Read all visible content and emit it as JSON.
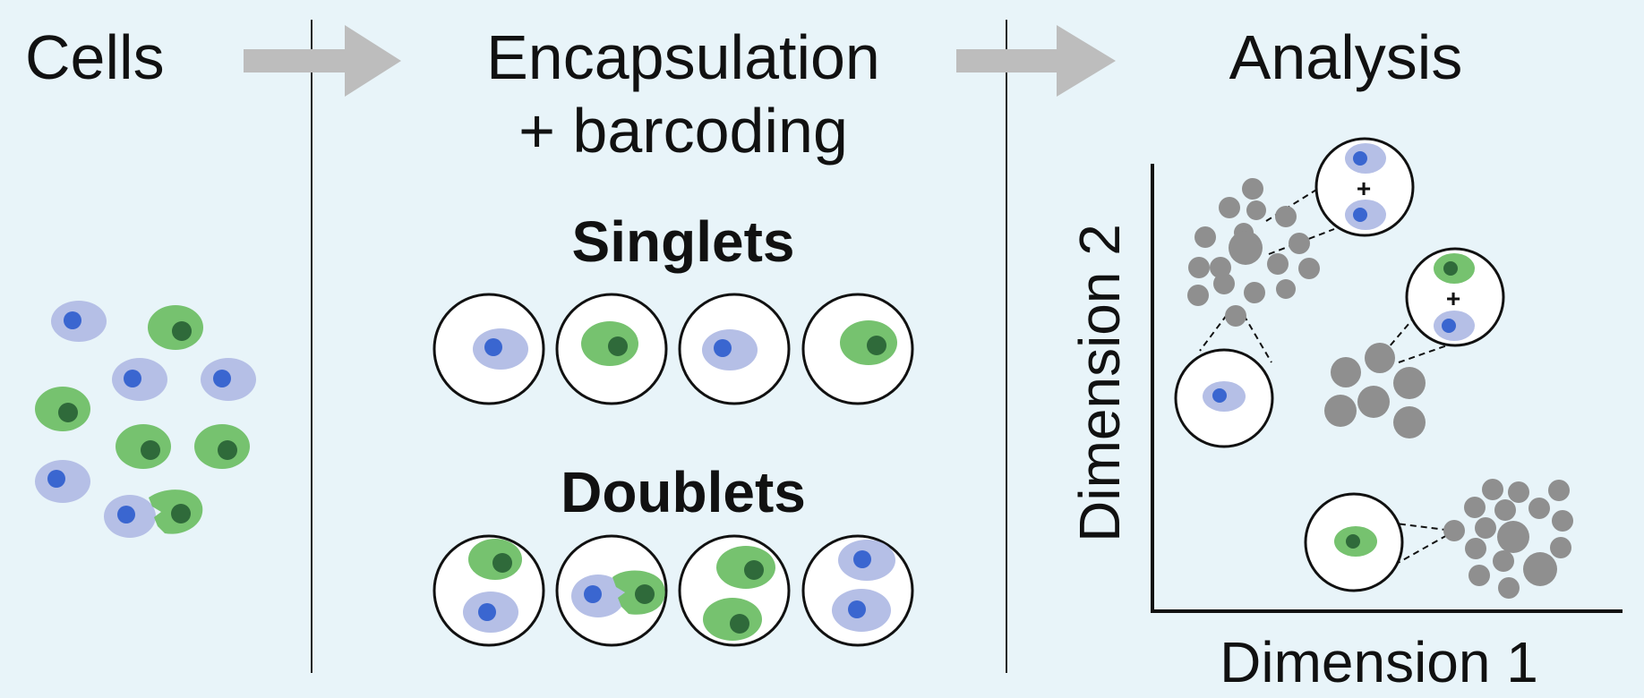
{
  "steps": {
    "cells": "Cells",
    "encapsulation_line1": "Encapsulation",
    "encapsulation_line2": "+ barcoding",
    "analysis": "Analysis"
  },
  "groups": {
    "singlets": "Singlets",
    "doublets": "Doublets"
  },
  "axes": {
    "x": "Dimension 1",
    "y": "Dimension 2"
  },
  "plus_sign": "+",
  "colors": {
    "background": "#e8f4f9",
    "blue_cell": "#b5bfe6",
    "blue_nucleus": "#3a66d0",
    "green_cell": "#76c26f",
    "green_nucleus": "#2f6a3a",
    "dot": "#8f8f8f",
    "arrow": "#bdbdbd"
  }
}
